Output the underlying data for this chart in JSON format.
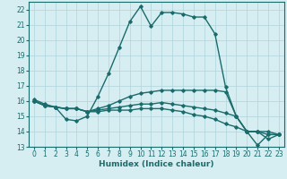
{
  "xlabel": "Humidex (Indice chaleur)",
  "background_color": "#d6eef2",
  "grid_color": "#b0d4dc",
  "line_color": "#1a6b6b",
  "x_values": [
    0,
    1,
    2,
    3,
    4,
    5,
    6,
    7,
    8,
    9,
    10,
    11,
    12,
    13,
    14,
    15,
    16,
    17,
    18,
    19,
    20,
    21,
    22,
    23
  ],
  "lines": [
    [
      16.1,
      15.8,
      15.6,
      14.8,
      14.7,
      15.0,
      16.3,
      17.8,
      19.5,
      21.2,
      22.2,
      20.9,
      21.8,
      21.8,
      21.7,
      21.5,
      21.5,
      20.4,
      16.9,
      15.0,
      14.0,
      13.1,
      13.8,
      13.8
    ],
    [
      16.0,
      15.7,
      15.6,
      15.5,
      15.5,
      15.3,
      15.5,
      15.7,
      16.0,
      16.3,
      16.5,
      16.6,
      16.7,
      16.7,
      16.7,
      16.7,
      16.7,
      16.7,
      16.6,
      15.0,
      14.0,
      14.0,
      14.0,
      13.8
    ],
    [
      16.0,
      15.7,
      15.6,
      15.5,
      15.5,
      15.3,
      15.4,
      15.5,
      15.6,
      15.7,
      15.8,
      15.8,
      15.9,
      15.8,
      15.7,
      15.6,
      15.5,
      15.4,
      15.2,
      15.0,
      14.0,
      14.0,
      13.8,
      13.8
    ],
    [
      16.0,
      15.7,
      15.6,
      15.5,
      15.5,
      15.3,
      15.3,
      15.4,
      15.4,
      15.4,
      15.5,
      15.5,
      15.5,
      15.4,
      15.3,
      15.1,
      15.0,
      14.8,
      14.5,
      14.3,
      14.0,
      14.0,
      13.5,
      13.8
    ]
  ],
  "ylim": [
    13,
    22.5
  ],
  "xlim": [
    -0.5,
    23.5
  ],
  "yticks": [
    13,
    14,
    15,
    16,
    17,
    18,
    19,
    20,
    21,
    22
  ],
  "xticks": [
    0,
    1,
    2,
    3,
    4,
    5,
    6,
    7,
    8,
    9,
    10,
    11,
    12,
    13,
    14,
    15,
    16,
    17,
    18,
    19,
    20,
    21,
    22,
    23
  ],
  "marker": "D",
  "markersize": 1.8,
  "linewidth": 1.0,
  "fontsize_ticks": 5.5,
  "fontsize_label": 6.5
}
